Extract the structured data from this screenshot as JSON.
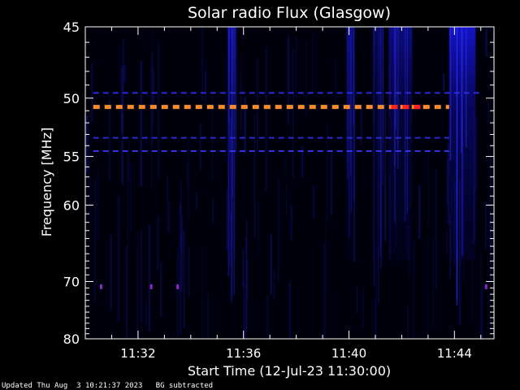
{
  "chart_data": {
    "type": "heatmap",
    "title": "Solar radio Flux (Glasgow)",
    "xlabel": "Start Time (12-Jul-23 11:30:00)",
    "ylabel": "Frequency [MHz]",
    "x_start": "11:30:00",
    "x_range_minutes": [
      0,
      15.5
    ],
    "ylim": [
      45,
      80
    ],
    "y_scale": "reciprocal",
    "x_ticks": [
      {
        "label": "11:32",
        "minute": 2
      },
      {
        "label": "11:36",
        "minute": 6
      },
      {
        "label": "11:40",
        "minute": 10
      },
      {
        "label": "11:44",
        "minute": 14
      }
    ],
    "y_ticks": [
      {
        "label": "45",
        "value": 45
      },
      {
        "label": "50",
        "value": 50
      },
      {
        "label": "55",
        "value": 55
      },
      {
        "label": "60",
        "value": 60
      },
      {
        "label": "70",
        "value": 70
      },
      {
        "label": "80",
        "value": 80
      }
    ],
    "interference_lines": [
      {
        "freq_mhz": 50.7,
        "color": "#ff8c2a",
        "start_min": 0.3,
        "end_min": 13.8,
        "highlight_start": 11.6,
        "highlight_end": 12.8,
        "highlight_color": "#ff2020"
      },
      {
        "freq_mhz": 49.6,
        "color": "#2a2ad8",
        "start_min": 0.3,
        "end_min": 15.0
      },
      {
        "freq_mhz": 53.3,
        "color": "#2a2acc",
        "start_min": 0.3,
        "end_min": 13.8
      },
      {
        "freq_mhz": 54.5,
        "color": "#3232e0",
        "start_min": 0.3,
        "end_min": 13.8
      }
    ],
    "bursts": [
      {
        "start_min": 5.4,
        "end_min": 5.7,
        "intensity": 0.6
      },
      {
        "start_min": 9.9,
        "end_min": 10.2,
        "intensity": 0.45
      },
      {
        "start_min": 11.5,
        "end_min": 12.4,
        "intensity": 0.55
      },
      {
        "start_min": 13.8,
        "end_min": 14.8,
        "intensity": 0.9
      },
      {
        "start_min": 10.9,
        "end_min": 11.3,
        "intensity": 0.35
      }
    ],
    "colors": {
      "background": "#000000",
      "axes": "#ffffff",
      "plot_bg": "#00000c"
    }
  },
  "footer": {
    "updated": "Updated Thu Aug  3 10:21:37 2023",
    "note": "BG subtracted"
  }
}
